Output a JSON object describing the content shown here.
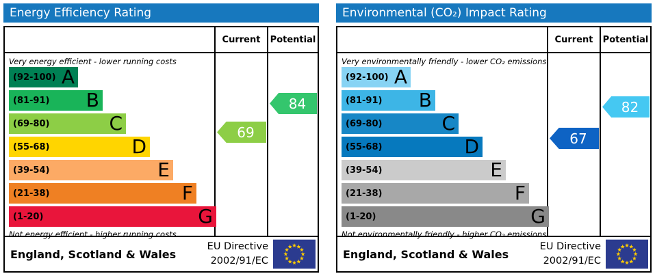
{
  "chart_data": [
    {
      "type": "bar",
      "subtype": "epc-rating-scale",
      "title": "Energy Efficiency Rating",
      "title_bg": "#1778be",
      "columns": {
        "current": "Current",
        "potential": "Potential"
      },
      "top_note": "Very energy efficient - lower running costs",
      "bottom_note": "Not energy efficient - higher running costs",
      "bands": [
        {
          "letter": "A",
          "label": "(92-100)",
          "min": 92,
          "max": 100,
          "color": "#008054"
        },
        {
          "letter": "B",
          "label": "(81-91)",
          "min": 81,
          "max": 91,
          "color": "#19b459"
        },
        {
          "letter": "C",
          "label": "(69-80)",
          "min": 69,
          "max": 80,
          "color": "#8dce46"
        },
        {
          "letter": "D",
          "label": "(55-68)",
          "min": 55,
          "max": 68,
          "color": "#ffd500"
        },
        {
          "letter": "E",
          "label": "(39-54)",
          "min": 39,
          "max": 54,
          "color": "#fcaa65"
        },
        {
          "letter": "F",
          "label": "(21-38)",
          "min": 21,
          "max": 38,
          "color": "#ef8023"
        },
        {
          "letter": "G",
          "label": "(1-20)",
          "min": 1,
          "max": 20,
          "color": "#e9153b"
        }
      ],
      "current": {
        "value": 69,
        "band": "C",
        "color": "#8dce46"
      },
      "potential": {
        "value": 84,
        "band": "B",
        "color": "#34c66d"
      },
      "footer": {
        "region": "England, Scotland & Wales",
        "directive_line1": "EU Directive",
        "directive_line2": "2002/91/EC"
      }
    },
    {
      "type": "bar",
      "subtype": "epc-rating-scale",
      "title": "Environmental (CO₂) Impact Rating",
      "title_bg": "#1778be",
      "columns": {
        "current": "Current",
        "potential": "Potential"
      },
      "top_note": "Very environmentally friendly - lower CO₂ emissions",
      "bottom_note": "Not environmentally friendly - higher CO₂ emissions",
      "bands": [
        {
          "letter": "A",
          "label": "(92-100)",
          "min": 92,
          "max": 100,
          "color": "#87d3f4"
        },
        {
          "letter": "B",
          "label": "(81-91)",
          "min": 81,
          "max": 91,
          "color": "#3db5e6"
        },
        {
          "letter": "C",
          "label": "(69-80)",
          "min": 69,
          "max": 80,
          "color": "#1787c6"
        },
        {
          "letter": "D",
          "label": "(55-68)",
          "min": 55,
          "max": 68,
          "color": "#0679be"
        },
        {
          "letter": "E",
          "label": "(39-54)",
          "min": 39,
          "max": 54,
          "color": "#cbcbcb"
        },
        {
          "letter": "F",
          "label": "(21-38)",
          "min": 21,
          "max": 38,
          "color": "#a8a8a8"
        },
        {
          "letter": "G",
          "label": "(1-20)",
          "min": 1,
          "max": 20,
          "color": "#898989"
        }
      ],
      "current": {
        "value": 67,
        "band": "D",
        "color": "#0e63c4"
      },
      "potential": {
        "value": 82,
        "band": "B",
        "color": "#45c8f2"
      },
      "footer": {
        "region": "England, Scotland & Wales",
        "directive_line1": "EU Directive",
        "directive_line2": "2002/91/EC"
      }
    }
  ],
  "eu_flag": {
    "background": "#2b3b8f",
    "star_color": "#ffcc00"
  }
}
